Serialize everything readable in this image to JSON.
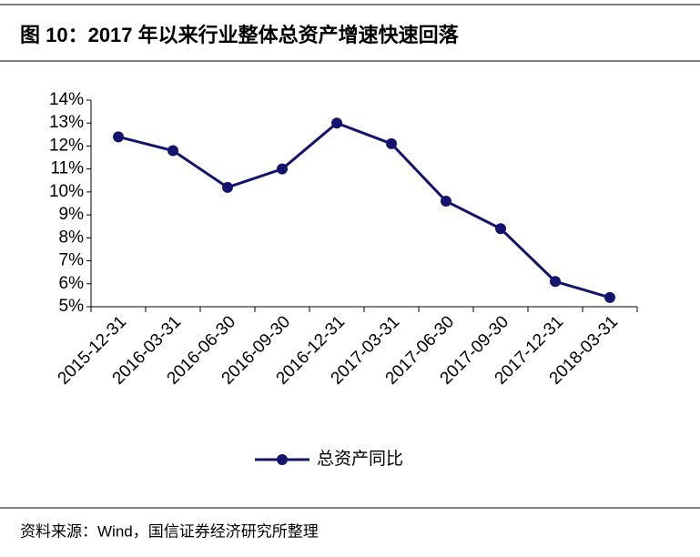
{
  "chart_data": {
    "type": "line",
    "title": "图 10：2017 年以来行业整体总资产增速快速回落",
    "source": "资料来源：Wind，国信证券经济研究所整理",
    "categories": [
      "2015-12-31",
      "2016-03-31",
      "2016-06-30",
      "2016-09-30",
      "2016-12-31",
      "2017-03-31",
      "2017-06-30",
      "2017-09-30",
      "2017-12-31",
      "2018-03-31"
    ],
    "series": [
      {
        "name": "总资产同比",
        "color": "#14146e",
        "values": [
          12.4,
          11.8,
          10.2,
          11.0,
          13.0,
          12.1,
          9.6,
          8.4,
          6.1,
          5.4
        ]
      }
    ],
    "ylim": [
      5,
      14
    ],
    "yticks": [
      {
        "value": 5,
        "label": "5%"
      },
      {
        "value": 6,
        "label": "6%"
      },
      {
        "value": 7,
        "label": "7%"
      },
      {
        "value": 8,
        "label": "8%"
      },
      {
        "value": 9,
        "label": "9%"
      },
      {
        "value": 10,
        "label": "10%"
      },
      {
        "value": 11,
        "label": "11%"
      },
      {
        "value": 12,
        "label": "12%"
      },
      {
        "value": 13,
        "label": "13%"
      },
      {
        "value": 14,
        "label": "14%"
      }
    ],
    "grid": false
  }
}
